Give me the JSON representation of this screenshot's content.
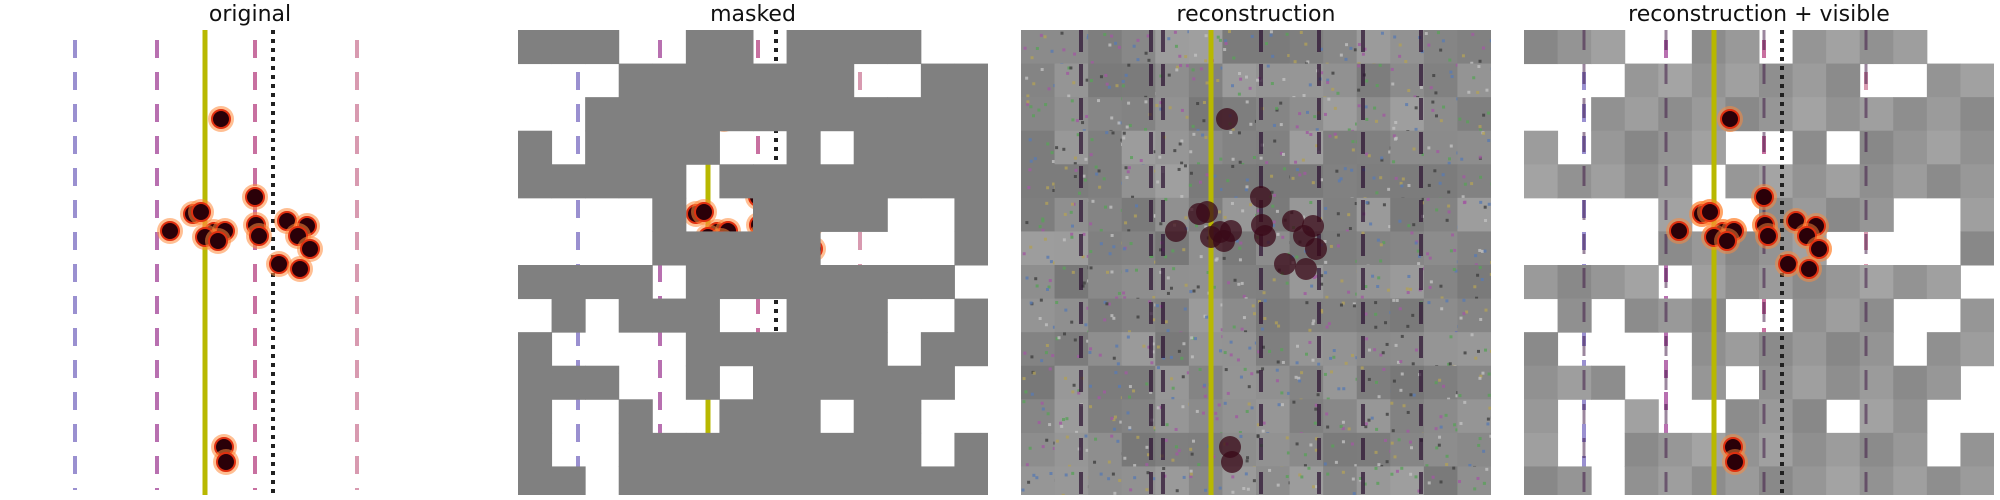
{
  "panels": [
    {
      "id": "original",
      "title": "original"
    },
    {
      "id": "masked",
      "title": "masked"
    },
    {
      "id": "reconstruction",
      "title": "reconstruction"
    },
    {
      "id": "recon_visible",
      "title": "reconstruction + visible"
    }
  ],
  "colors": {
    "mask_gray": "#808080",
    "yellow_line": "#b8b800",
    "dashed_lines": [
      "#9a90d0",
      "#b870b0",
      "#c870a0",
      "#d89ab0"
    ],
    "dot_line": "#202020",
    "ball_fill": "#2a0008",
    "ball_rim": "#e03010",
    "halo": "#ff8a3a",
    "recon_bg": "#8e8e8e"
  },
  "icons": {
    "markers": "ball-icon"
  }
}
